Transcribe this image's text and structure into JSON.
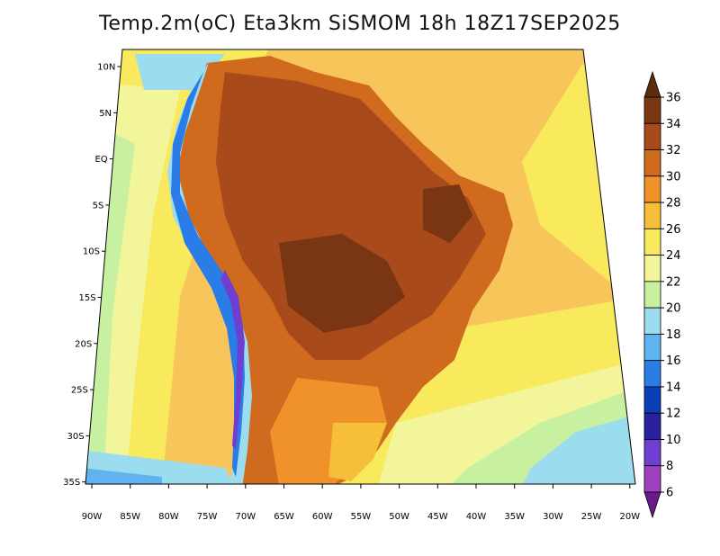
{
  "title": "Temp.2m(oC) Eta3km SiSMOM 18h 18Z17SEP2025",
  "lat_labels": [
    "10N",
    "5N",
    "EQ",
    "5S",
    "10S",
    "15S",
    "20S",
    "25S",
    "30S",
    "35S"
  ],
  "lon_labels": [
    "90W",
    "85W",
    "80W",
    "75W",
    "70W",
    "65W",
    "60W",
    "55W",
    "50W",
    "45W",
    "40W",
    "35W",
    "30W",
    "25W",
    "20W"
  ],
  "colorbar": {
    "labels": [
      "36",
      "34",
      "32",
      "30",
      "28",
      "26",
      "24",
      "22",
      "20",
      "18",
      "16",
      "14",
      "12",
      "10",
      "8",
      "6"
    ],
    "colors": [
      "#5c2a0e",
      "#7a3512",
      "#a84a1a",
      "#cf6a1e",
      "#f0922a",
      "#f7be3a",
      "#f8ea5c",
      "#f2f59a",
      "#c7f0a0",
      "#9cdcef",
      "#5fb4f0",
      "#2a7ce6",
      "#0b3fb8",
      "#2a20a0",
      "#6e3fd0",
      "#a040c0",
      "#6a1a8a"
    ]
  },
  "colors": {
    "ocean_warm": "#f8c55a",
    "ocean_mild": "#f8ea5c",
    "ocean_cool": "#f2f59a",
    "ocean_cold": "#c7f0a0",
    "ocean_south": "#9cdcef",
    "land_hot": "#a84a1a",
    "land_very_hot": "#7a3512",
    "land_warm": "#cf6a1e",
    "andes": "#3a3ad0"
  }
}
